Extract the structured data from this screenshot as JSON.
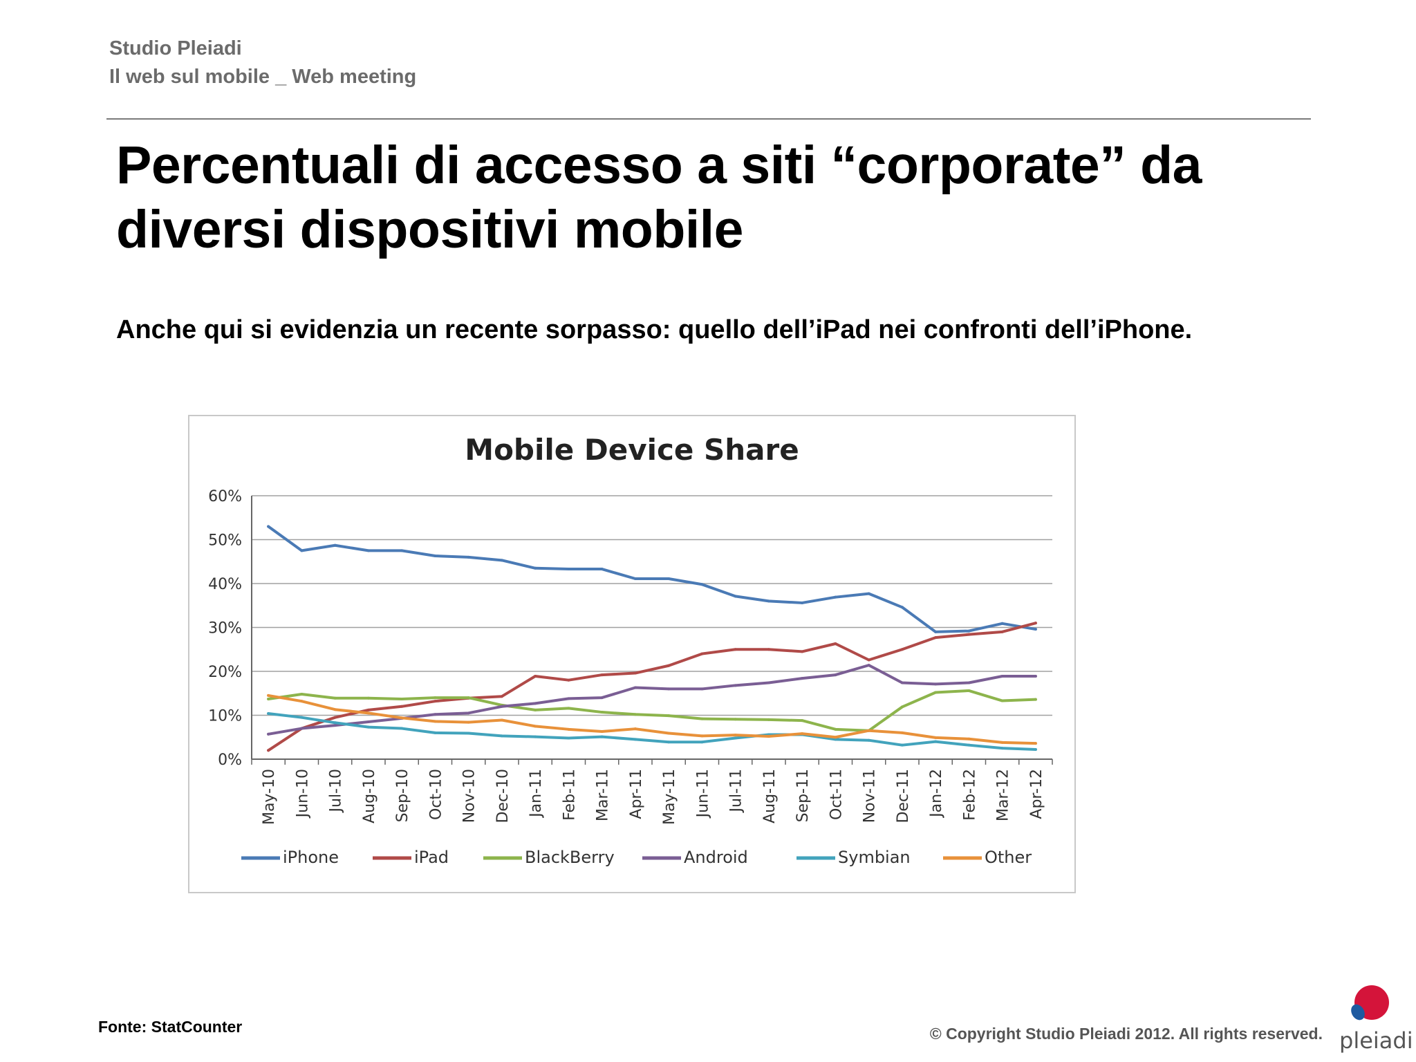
{
  "header": {
    "brand": "Studio Pleiadi",
    "event": "Il web sul mobile _ Web meeting"
  },
  "slide": {
    "title": "Percentuali di accesso a siti “corporate” da diversi dispositivi mobile",
    "subtitle": "Anche qui si evidenzia un recente sorpasso: quello dell’iPad nei confronti dell’iPhone."
  },
  "footer": {
    "source": "Fonte: StatCounter",
    "copyright": "© Copyright Studio Pleiadi 2012. All rights reserved.",
    "logo_text": "pleiadi"
  },
  "logo": {
    "icon": "pleiadi-logo-icon",
    "colors": [
      "#d4143a",
      "#1e5aa0"
    ]
  },
  "chart_data": {
    "type": "line",
    "title": "Mobile Device Share",
    "xlabel": "",
    "ylabel": "",
    "ylim": [
      0,
      60
    ],
    "y_ticks": [
      "0%",
      "10%",
      "20%",
      "30%",
      "40%",
      "50%",
      "60%"
    ],
    "grid": true,
    "legend_position": "bottom",
    "categories": [
      "May-10",
      "Jun-10",
      "Jul-10",
      "Aug-10",
      "Sep-10",
      "Oct-10",
      "Nov-10",
      "Dec-10",
      "Jan-11",
      "Feb-11",
      "Mar-11",
      "Apr-11",
      "May-11",
      "Jun-11",
      "Jul-11",
      "Aug-11",
      "Sep-11",
      "Oct-11",
      "Nov-11",
      "Dec-11",
      "Jan-12",
      "Feb-12",
      "Mar-12",
      "Apr-12"
    ],
    "series": [
      {
        "name": "iPhone",
        "color": "#4a7ab5",
        "values": [
          53,
          47.5,
          48.7,
          47.5,
          47.5,
          46.3,
          46,
          45.3,
          43.5,
          43.3,
          43.3,
          41.1,
          41.1,
          39.8,
          37.1,
          36,
          35.6,
          36.9,
          37.7,
          34.6,
          29,
          29.2,
          30.9,
          29.6
        ]
      },
      {
        "name": "iPad",
        "color": "#b04a48",
        "values": [
          2,
          7,
          9.5,
          11.2,
          12,
          13.2,
          13.9,
          14.3,
          18.9,
          18,
          19.2,
          19.6,
          21.3,
          24,
          25,
          25,
          24.5,
          26.3,
          22.6,
          25,
          27.7,
          28.4,
          29,
          31
        ]
      },
      {
        "name": "BlackBerry",
        "color": "#8db44c",
        "values": [
          13.7,
          14.8,
          13.9,
          13.9,
          13.7,
          14,
          14,
          12.3,
          11.2,
          11.6,
          10.7,
          10.2,
          9.9,
          9.2,
          9.1,
          9,
          8.8,
          6.8,
          6.5,
          11.9,
          15.2,
          15.6,
          13.3,
          13.6
        ]
      },
      {
        "name": "Android",
        "color": "#7a5e94",
        "values": [
          5.7,
          7,
          7.7,
          8.5,
          9.3,
          10.2,
          10.5,
          12,
          12.7,
          13.8,
          14,
          16.3,
          16,
          16,
          16.8,
          17.4,
          18.4,
          19.2,
          21.4,
          17.4,
          17.1,
          17.4,
          18.9,
          18.9
        ]
      },
      {
        "name": "Symbian",
        "color": "#42a3bc",
        "values": [
          10.4,
          9.5,
          8.3,
          7.3,
          7,
          6,
          5.9,
          5.3,
          5.1,
          4.8,
          5.1,
          4.5,
          3.9,
          3.9,
          4.8,
          5.6,
          5.6,
          4.5,
          4.3,
          3.2,
          4,
          3.2,
          2.5,
          2.2
        ]
      },
      {
        "name": "Other",
        "color": "#e8913a",
        "values": [
          14.5,
          13.2,
          11.3,
          10.5,
          9.4,
          8.6,
          8.4,
          8.9,
          7.5,
          6.8,
          6.3,
          6.9,
          5.9,
          5.3,
          5.5,
          5.2,
          5.8,
          5,
          6.5,
          6,
          4.9,
          4.6,
          3.8,
          3.6
        ]
      }
    ]
  }
}
